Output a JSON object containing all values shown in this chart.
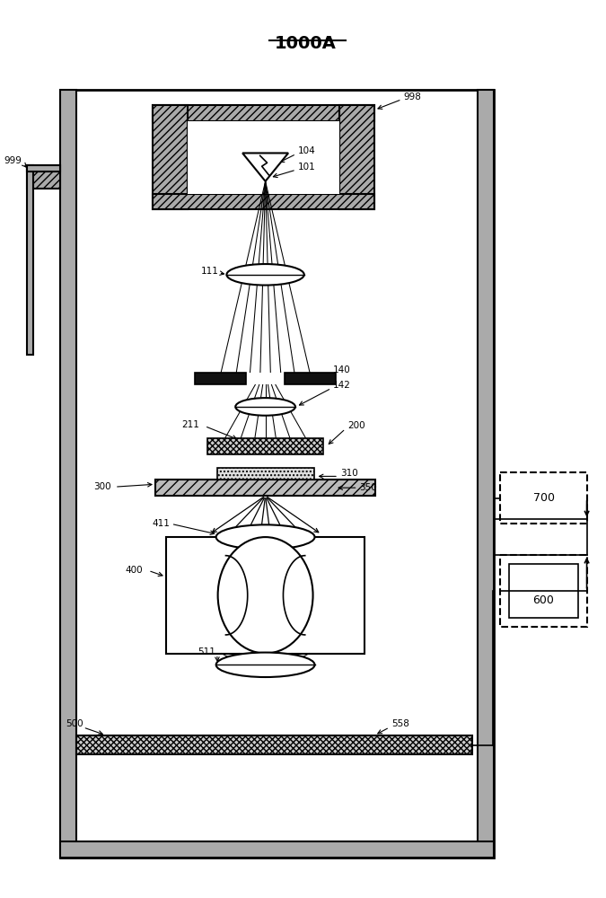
{
  "bg": "#ffffff",
  "lc": "#000000",
  "title": "1000A"
}
